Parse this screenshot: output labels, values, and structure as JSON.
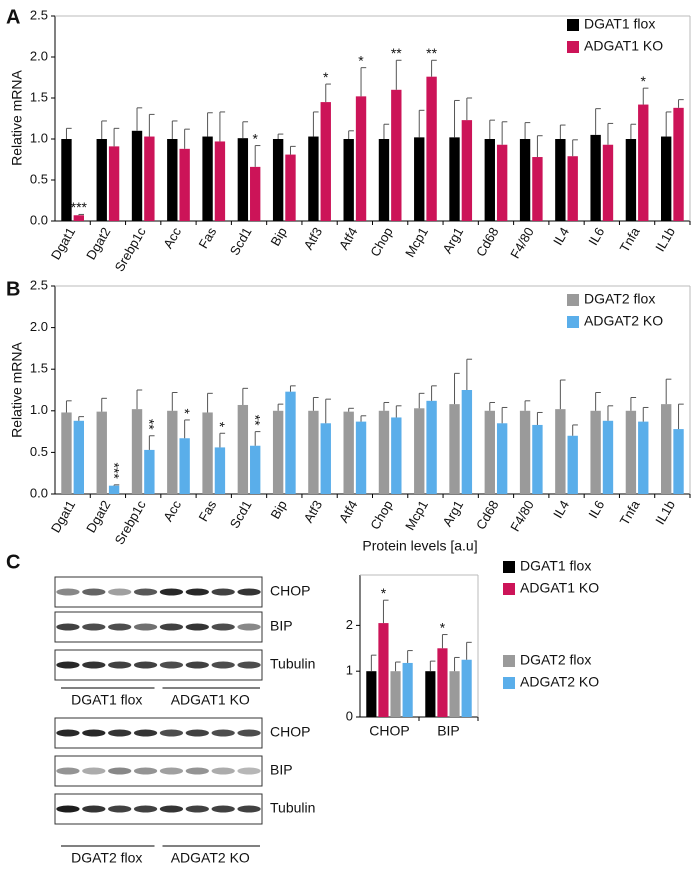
{
  "chart_data": [
    {
      "type": "bar",
      "panel": "A",
      "ylabel": "Relative mRNA",
      "categories": [
        "Dgat1",
        "Dgat2",
        "Srebp1c",
        "Acc",
        "Fas",
        "Scd1",
        "Bip",
        "Atf3",
        "Atf4",
        "Chop",
        "Mcp1",
        "Arg1",
        "Cd68",
        "F4/80",
        "IL4",
        "IL6",
        "Tnfa",
        "IL1b"
      ],
      "series": [
        {
          "name": "DGAT1 flox",
          "color": "#000000",
          "values": [
            1.0,
            1.0,
            1.1,
            1.0,
            1.03,
            1.01,
            1.0,
            1.03,
            1.0,
            1.0,
            1.02,
            1.02,
            1.0,
            1.0,
            1.0,
            1.05,
            1.0,
            1.03
          ],
          "errors": [
            0.13,
            0.22,
            0.28,
            0.22,
            0.29,
            0.2,
            0.06,
            0.3,
            0.1,
            0.18,
            0.33,
            0.45,
            0.23,
            0.2,
            0.17,
            0.32,
            0.18,
            0.3
          ]
        },
        {
          "name": "ADGAT1 KO",
          "color": "#cc1458",
          "values": [
            0.07,
            0.91,
            1.03,
            0.88,
            0.97,
            0.66,
            0.81,
            1.45,
            1.52,
            1.6,
            1.76,
            1.23,
            0.93,
            0.78,
            0.79,
            0.93,
            1.42,
            1.38
          ],
          "errors": [
            0.01,
            0.22,
            0.27,
            0.24,
            0.36,
            0.26,
            0.1,
            0.22,
            0.35,
            0.36,
            0.2,
            0.27,
            0.28,
            0.26,
            0.2,
            0.26,
            0.2,
            0.1
          ],
          "annotations": [
            "***",
            null,
            null,
            null,
            null,
            "*",
            null,
            "*",
            "*",
            "**",
            "**",
            null,
            null,
            null,
            null,
            null,
            "*",
            null
          ]
        }
      ],
      "ylim": [
        0,
        2.5
      ],
      "yticks": [
        {
          "value": 0,
          "label": "0.0"
        },
        0.5,
        {
          "value": 1,
          "label": "1.0"
        },
        1.5,
        {
          "value": 2,
          "label": "2.0"
        },
        2.5
      ],
      "legend": "upper right"
    },
    {
      "type": "bar",
      "panel": "B",
      "ylabel": "Relative mRNA",
      "categories": [
        "Dgat1",
        "Dgat2",
        "Srebp1c",
        "Acc",
        "Fas",
        "Scd1",
        "Bip",
        "Atf3",
        "Atf4",
        "Chop",
        "Mcp1",
        "Arg1",
        "Cd68",
        "F4/80",
        "IL4",
        "IL6",
        "Tnfa",
        "IL1b"
      ],
      "series": [
        {
          "name": "DGAT2 flox",
          "color": "#9a9a9a",
          "values": [
            0.98,
            0.99,
            1.02,
            1.0,
            0.98,
            1.07,
            1.0,
            1.0,
            0.99,
            1.0,
            1.03,
            1.08,
            1.0,
            1.0,
            1.02,
            1.0,
            1.0,
            1.08
          ],
          "errors": [
            0.14,
            0.16,
            0.23,
            0.22,
            0.23,
            0.2,
            0.08,
            0.16,
            0.04,
            0.1,
            0.18,
            0.37,
            0.1,
            0.12,
            0.35,
            0.22,
            0.16,
            0.3
          ]
        },
        {
          "name": "ADGAT2 KO",
          "color": "#5aaeea",
          "values": [
            0.88,
            0.1,
            0.53,
            0.67,
            0.56,
            0.58,
            1.23,
            0.85,
            0.87,
            0.92,
            1.12,
            1.25,
            0.85,
            0.83,
            0.7,
            0.88,
            0.87,
            0.78
          ],
          "errors": [
            0.05,
            0.01,
            0.17,
            0.22,
            0.17,
            0.17,
            0.07,
            0.29,
            0.07,
            0.14,
            0.18,
            0.37,
            0.19,
            0.15,
            0.13,
            0.18,
            0.17,
            0.3
          ],
          "annotations": [
            null,
            "***",
            "**",
            "*",
            "*",
            "**",
            null,
            null,
            null,
            null,
            null,
            null,
            null,
            null,
            null,
            null,
            null,
            null
          ]
        }
      ],
      "ylim": [
        0,
        2.5
      ],
      "yticks": [
        {
          "value": 0,
          "label": "0.0"
        },
        0.5,
        {
          "value": 1,
          "label": "1.0"
        },
        1.5,
        {
          "value": 2,
          "label": "2.0"
        },
        2.5
      ],
      "legend": "upper right"
    },
    {
      "type": "bar",
      "panel": "C",
      "title": "Protein levels [a.u]",
      "categories": [
        "CHOP",
        "BIP"
      ],
      "series": [
        {
          "name": "DGAT1 flox",
          "color": "#000000",
          "values": [
            1.0,
            1.0
          ],
          "errors": [
            0.35,
            0.22
          ]
        },
        {
          "name": "ADGAT1 KO",
          "color": "#cc1458",
          "values": [
            2.05,
            1.5
          ],
          "errors": [
            0.5,
            0.3
          ],
          "annotations": [
            "*",
            "*"
          ]
        },
        {
          "name": "DGAT2 flox",
          "color": "#9a9a9a",
          "values": [
            1.0,
            1.0
          ],
          "errors": [
            0.2,
            0.3
          ]
        },
        {
          "name": "ADGAT2 KO",
          "color": "#5aaeea",
          "values": [
            1.18,
            1.25
          ],
          "errors": [
            0.27,
            0.38
          ]
        }
      ],
      "ylim": [
        0,
        3.1
      ],
      "yticks": [
        0,
        1,
        2
      ],
      "legend": "right"
    }
  ],
  "blots": {
    "top": {
      "rows": [
        "CHOP",
        "BIP",
        "Tubulin"
      ],
      "groups": [
        "DGAT1 flox",
        "ADGAT1 KO"
      ]
    },
    "bottom": {
      "rows": [
        "CHOP",
        "BIP",
        "Tubulin"
      ],
      "groups": [
        "DGAT2 flox",
        "ADGAT2 KO"
      ]
    }
  }
}
